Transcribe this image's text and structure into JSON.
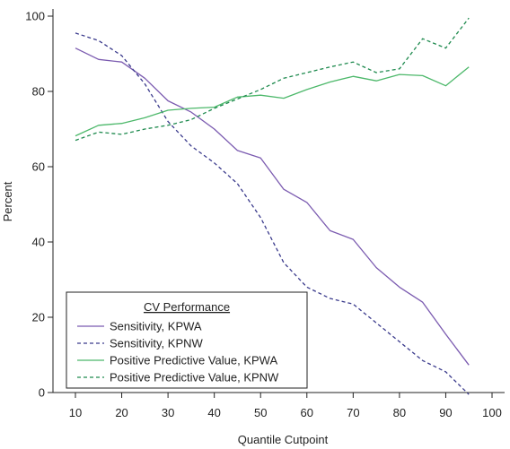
{
  "chart_data": {
    "type": "line",
    "xlabel": "Quantile Cutpoint",
    "ylabel": "Percent",
    "xlim": [
      5,
      100
    ],
    "ylim": [
      0,
      100
    ],
    "xticks": [
      "10",
      "20",
      "30",
      "40",
      "50",
      "60",
      "70",
      "80",
      "90",
      "100"
    ],
    "yticks": [
      "0",
      "20",
      "40",
      "60",
      "80",
      "100"
    ],
    "legend": {
      "title": "CV Performance",
      "position": "bottom-left"
    },
    "x": [
      10,
      15,
      20,
      25,
      30,
      35,
      40,
      45,
      50,
      55,
      60,
      65,
      70,
      75,
      80,
      85,
      90,
      95
    ],
    "series": [
      {
        "name": "Sensitivity, KPWA",
        "color": "#7b5bb0",
        "style": "solid",
        "values": [
          91.5,
          88.5,
          87.8,
          83.5,
          77.5,
          74.5,
          70.0,
          64.3,
          62.3,
          54.0,
          50.5,
          43.0,
          40.7,
          33.2,
          28.0,
          24.0,
          15.5,
          7.3
        ]
      },
      {
        "name": "Sensitivity, KPNW",
        "color": "#3a3a8c",
        "style": "dashed",
        "values": [
          95.5,
          93.5,
          89.5,
          82.0,
          72.0,
          65.5,
          61.0,
          55.5,
          46.5,
          34.5,
          28.0,
          25.0,
          23.5,
          18.5,
          13.5,
          8.5,
          5.5,
          -0.5
        ]
      },
      {
        "name": "Positive Predictive Value, KPWA",
        "color": "#4cb86a",
        "style": "solid",
        "values": [
          68.2,
          71.0,
          71.5,
          73.0,
          75.0,
          75.5,
          75.8,
          78.5,
          79.0,
          78.2,
          80.5,
          82.5,
          84.0,
          82.8,
          84.5,
          84.2,
          81.5,
          86.5
        ]
      },
      {
        "name": "Positive Predictive Value, KPNW",
        "color": "#1e8a4e",
        "style": "dashed",
        "values": [
          67.0,
          69.2,
          68.6,
          70.0,
          71.0,
          72.5,
          75.5,
          78.0,
          80.5,
          83.5,
          85.0,
          86.5,
          87.8,
          85.0,
          86.0,
          94.0,
          91.5,
          99.5
        ]
      }
    ]
  }
}
